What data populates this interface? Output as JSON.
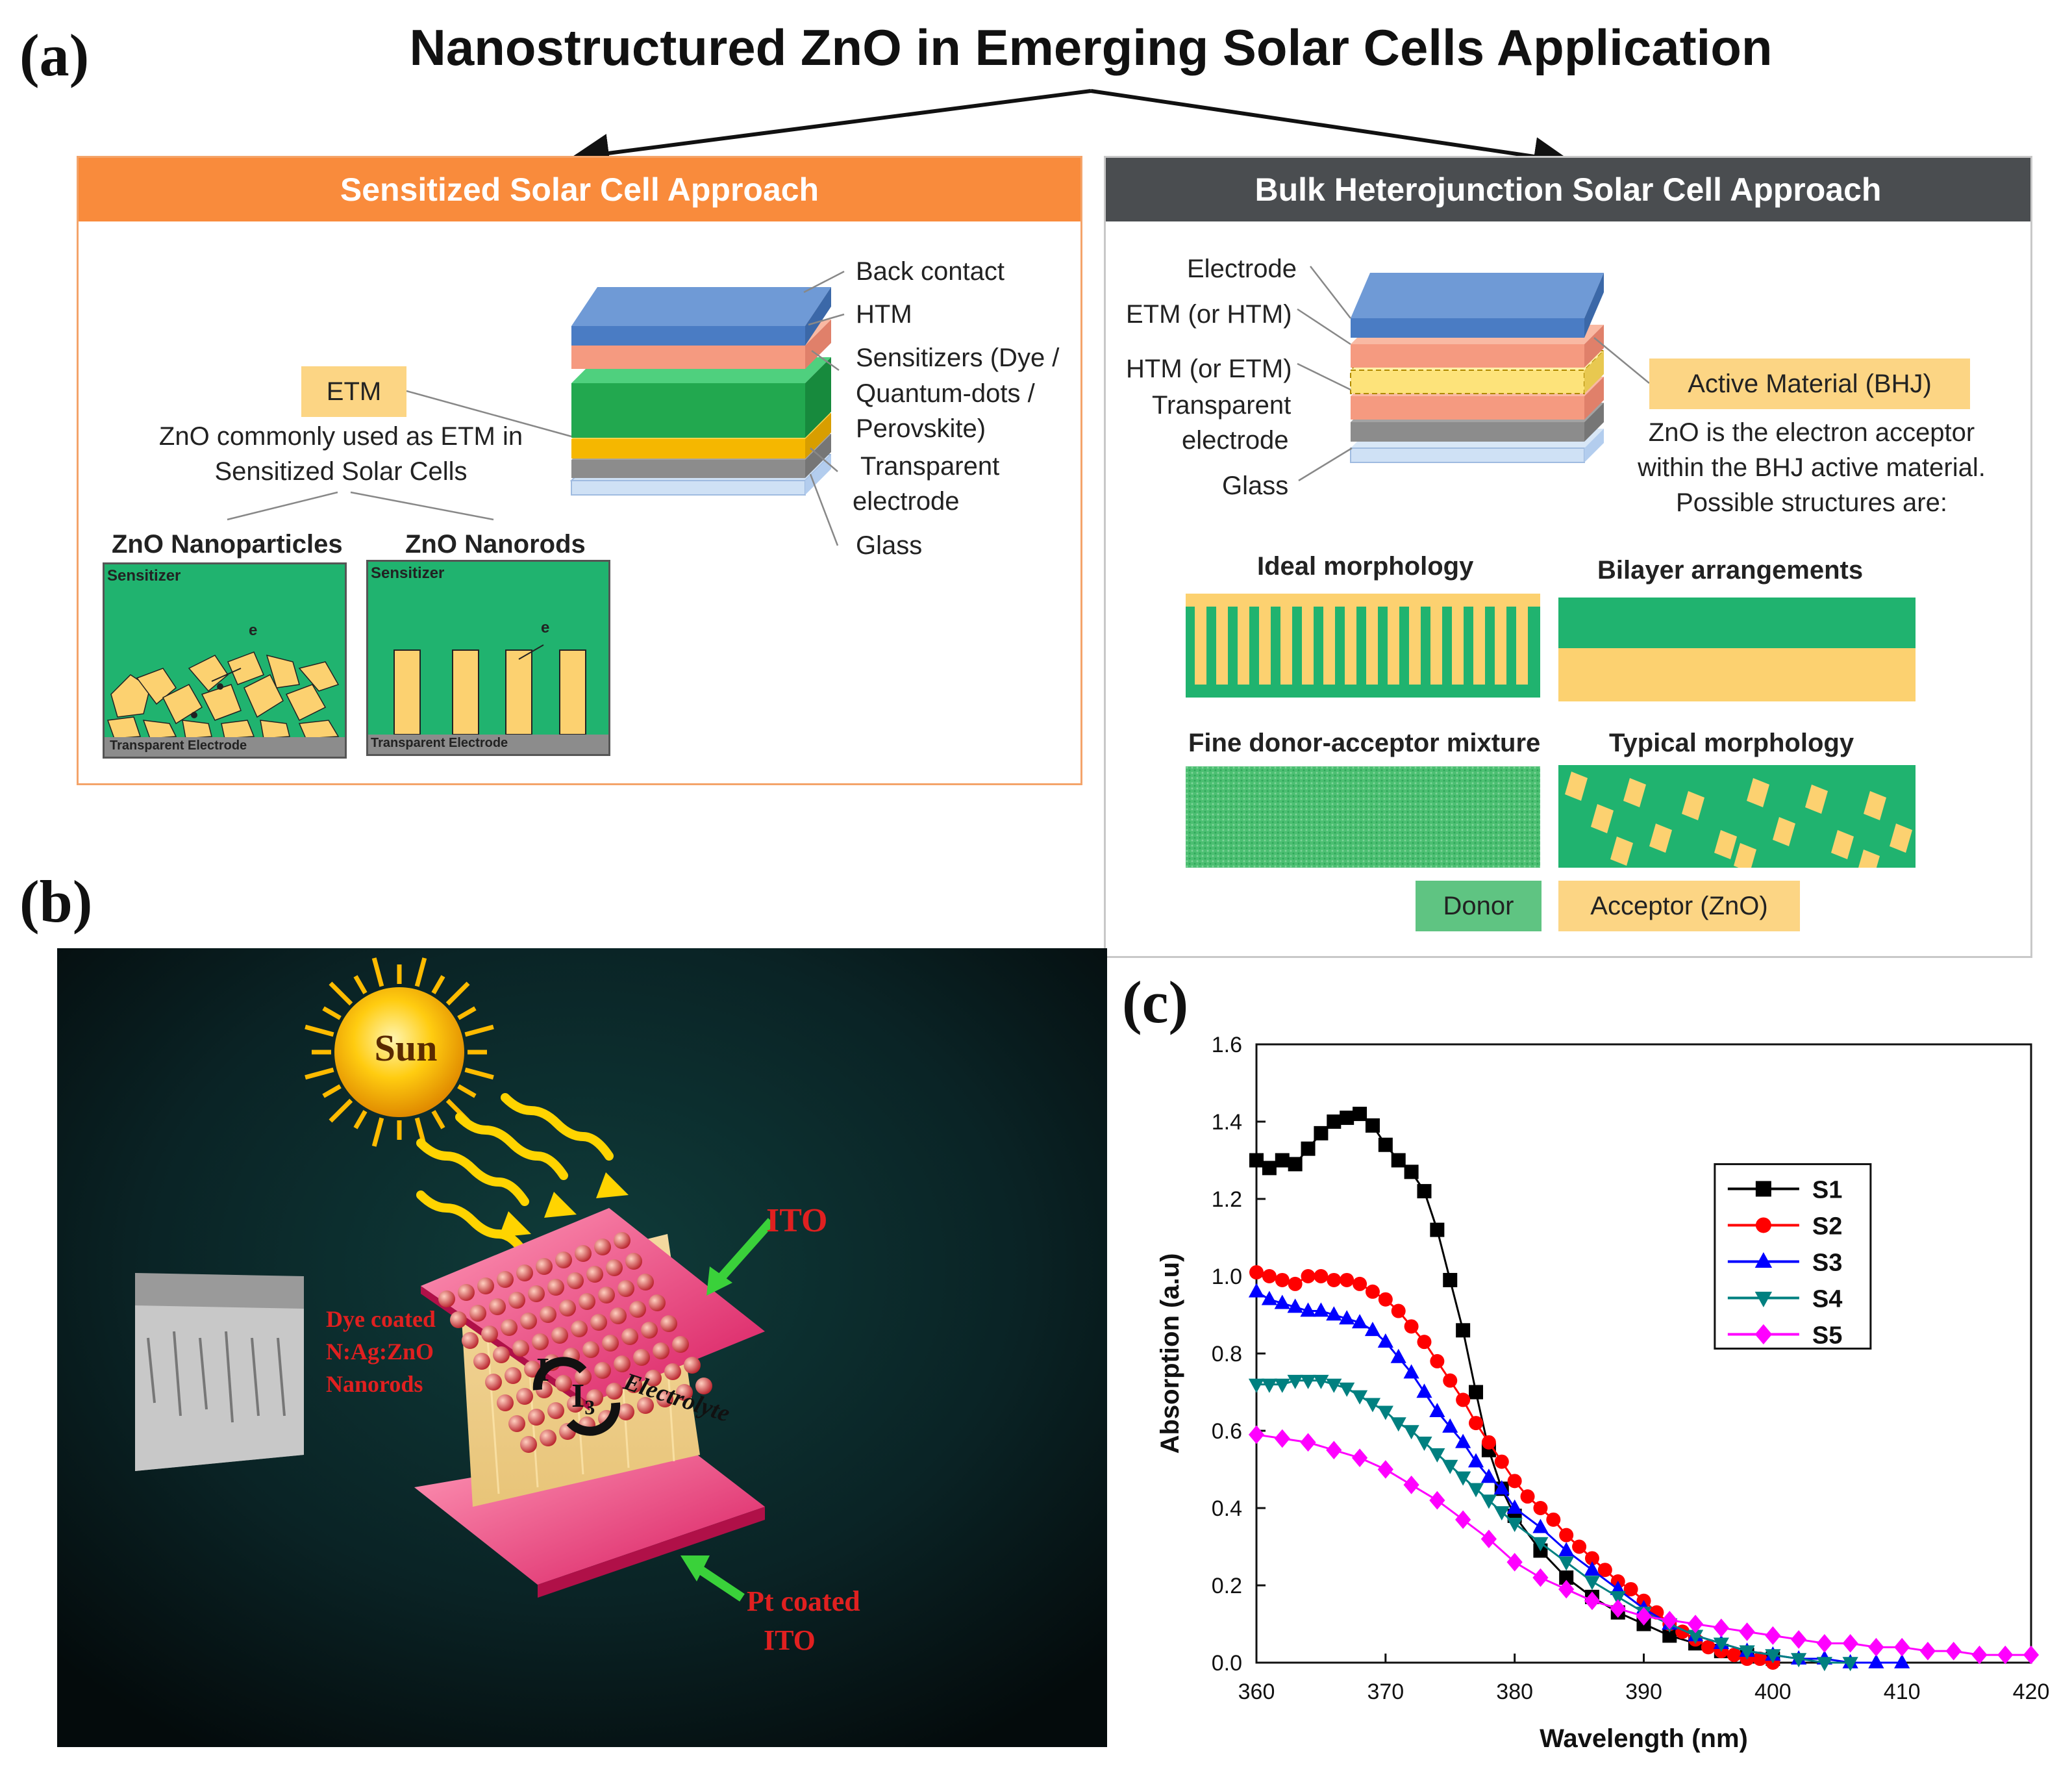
{
  "figure": {
    "main_title": "Nanostructured ZnO in Emerging Solar Cells Application",
    "panel_labels": {
      "a": "(a)",
      "b": "(b)",
      "c": "(c)"
    }
  },
  "sensitized": {
    "header": "Sensitized Solar Cell Approach",
    "layers": [
      "Back contact",
      "HTM",
      "Sensitizers (Dye /",
      "Quantum-dots /",
      "Perovskite)",
      "Transparent",
      "electrode",
      "Glass"
    ],
    "etm_tag": "ETM",
    "etm_desc": [
      "ZnO commonly used as ETM in",
      "Sensitized Solar Cells"
    ],
    "nanoparticles_title": "ZnO Nanoparticles",
    "nanorods_title": "ZnO Nanorods",
    "sensitizer_label": "Sensitizer",
    "electron_label": "e",
    "electrode_label": "Transparent Electrode"
  },
  "bhj": {
    "header": "Bulk Heterojunction Solar Cell Approach",
    "layers": [
      "Electrode",
      "ETM (or HTM)",
      "HTM (or ETM)",
      "Transparent",
      "electrode",
      "Glass"
    ],
    "active_tag": "Active Material (BHJ)",
    "active_desc": [
      "ZnO is the electron acceptor",
      "within the BHJ active material.",
      "Possible structures are:"
    ],
    "morphologies": [
      "Ideal morphology",
      "Bilayer arrangements",
      "Fine donor-acceptor mixture",
      "Typical morphology"
    ],
    "legend_donor": "Donor",
    "legend_acceptor": "Acceptor (ZnO)"
  },
  "cell_diagram": {
    "sun": "Sun",
    "ito": "ITO",
    "pt": [
      "Pt coated",
      "ITO"
    ],
    "dye": [
      "Dye coated",
      "N:Ag:ZnO",
      "Nanorods"
    ],
    "electrolyte": "Electrolyte",
    "iodide": "I",
    "iodide_sup": "-",
    "triiodide": "I",
    "triiodide_sub": "3"
  },
  "colors": {
    "orange": "#f98b3c",
    "dark_gray": "#4a4d50",
    "green": "#1fb873",
    "yellow": "#fcd584",
    "s1": "#000000",
    "s2": "#ff0000",
    "s3": "#0000ff",
    "s4": "#008080",
    "s5": "#ff00ff"
  },
  "chart_data": {
    "type": "scatter",
    "xlabel": "Wavelength (nm)",
    "ylabel": "Absorption (a.u)",
    "xlim": [
      360,
      420
    ],
    "ylim": [
      0,
      1.6
    ],
    "xticks": [
      "360",
      "370",
      "380",
      "390",
      "400",
      "410",
      "420"
    ],
    "yticks": [
      "0.0",
      "0.2",
      "0.4",
      "0.6",
      "0.8",
      "1.0",
      "1.2",
      "1.4",
      "1.6"
    ],
    "legend_position": "top-right",
    "series": [
      {
        "name": "S1",
        "marker": "square",
        "color": "#000000",
        "x": [
          360,
          361,
          362,
          363,
          364,
          365,
          366,
          367,
          368,
          369,
          370,
          371,
          372,
          373,
          374,
          375,
          376,
          377,
          378,
          379,
          380,
          382,
          384,
          386,
          388,
          390,
          392,
          394,
          396,
          398,
          400
        ],
        "y": [
          1.3,
          1.28,
          1.3,
          1.29,
          1.33,
          1.37,
          1.4,
          1.41,
          1.42,
          1.39,
          1.34,
          1.3,
          1.27,
          1.22,
          1.12,
          0.99,
          0.86,
          0.7,
          0.55,
          0.45,
          0.38,
          0.29,
          0.22,
          0.17,
          0.13,
          0.1,
          0.07,
          0.05,
          0.03,
          0.02,
          0.01
        ]
      },
      {
        "name": "S2",
        "marker": "circle",
        "color": "#ff0000",
        "x": [
          360,
          361,
          362,
          363,
          364,
          365,
          366,
          367,
          368,
          369,
          370,
          371,
          372,
          373,
          374,
          375,
          376,
          377,
          378,
          379,
          380,
          381,
          382,
          383,
          384,
          385,
          386,
          387,
          388,
          389,
          390,
          391,
          392,
          393,
          394,
          395,
          396,
          397,
          398,
          399,
          400
        ],
        "y": [
          1.01,
          1.0,
          0.99,
          0.98,
          1.0,
          1.0,
          0.99,
          0.99,
          0.98,
          0.96,
          0.94,
          0.91,
          0.87,
          0.83,
          0.78,
          0.73,
          0.68,
          0.62,
          0.57,
          0.52,
          0.47,
          0.43,
          0.4,
          0.37,
          0.33,
          0.3,
          0.27,
          0.24,
          0.21,
          0.19,
          0.16,
          0.13,
          0.1,
          0.08,
          0.06,
          0.04,
          0.03,
          0.02,
          0.01,
          0.01,
          0.0
        ]
      },
      {
        "name": "S3",
        "marker": "triangle-up",
        "color": "#0000ff",
        "x": [
          360,
          361,
          362,
          363,
          364,
          365,
          366,
          367,
          368,
          369,
          370,
          371,
          372,
          373,
          374,
          375,
          376,
          377,
          378,
          379,
          380,
          382,
          384,
          386,
          388,
          390,
          392,
          394,
          396,
          398,
          400,
          402,
          404,
          406,
          408,
          410
        ],
        "y": [
          0.96,
          0.94,
          0.93,
          0.92,
          0.91,
          0.91,
          0.9,
          0.89,
          0.88,
          0.86,
          0.83,
          0.79,
          0.75,
          0.7,
          0.65,
          0.61,
          0.57,
          0.52,
          0.48,
          0.45,
          0.4,
          0.35,
          0.29,
          0.24,
          0.19,
          0.14,
          0.1,
          0.07,
          0.05,
          0.03,
          0.02,
          0.01,
          0.01,
          0.0,
          0.0,
          0.0
        ]
      },
      {
        "name": "S4",
        "marker": "triangle-down",
        "color": "#008080",
        "x": [
          360,
          361,
          362,
          363,
          364,
          365,
          366,
          367,
          368,
          369,
          370,
          371,
          372,
          373,
          374,
          375,
          376,
          377,
          378,
          379,
          380,
          382,
          384,
          386,
          388,
          390,
          392,
          394,
          396,
          398,
          400,
          402,
          404,
          406
        ],
        "y": [
          0.72,
          0.72,
          0.72,
          0.73,
          0.73,
          0.73,
          0.72,
          0.71,
          0.69,
          0.67,
          0.65,
          0.62,
          0.6,
          0.57,
          0.54,
          0.51,
          0.48,
          0.45,
          0.42,
          0.39,
          0.36,
          0.31,
          0.26,
          0.21,
          0.17,
          0.13,
          0.1,
          0.07,
          0.05,
          0.03,
          0.02,
          0.01,
          0.0,
          0.0
        ]
      },
      {
        "name": "S5",
        "marker": "diamond",
        "color": "#ff00ff",
        "x": [
          360,
          362,
          364,
          366,
          368,
          370,
          372,
          374,
          376,
          378,
          380,
          382,
          384,
          386,
          388,
          390,
          392,
          394,
          396,
          398,
          400,
          402,
          404,
          406,
          408,
          410,
          412,
          414,
          416,
          418,
          420
        ],
        "y": [
          0.59,
          0.58,
          0.57,
          0.55,
          0.53,
          0.5,
          0.46,
          0.42,
          0.37,
          0.32,
          0.26,
          0.22,
          0.19,
          0.16,
          0.14,
          0.12,
          0.11,
          0.1,
          0.09,
          0.08,
          0.07,
          0.06,
          0.05,
          0.05,
          0.04,
          0.04,
          0.03,
          0.03,
          0.02,
          0.02,
          0.02
        ]
      }
    ]
  }
}
